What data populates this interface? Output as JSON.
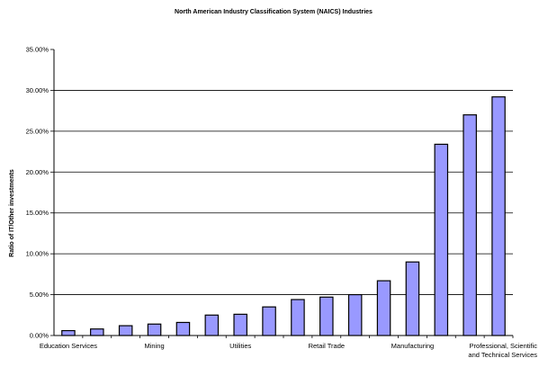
{
  "chart_data": {
    "type": "bar",
    "title": "North American Industry Classification System (NAICS) Industries",
    "xlabel": "",
    "ylabel": "Ratio of IT/Other investments",
    "ylim": [
      0,
      0.35
    ],
    "yticks": [
      "0.00%",
      "5.00%",
      "10.00%",
      "15.00%",
      "20.00%",
      "25.00%",
      "30.00%",
      "35.00%"
    ],
    "grid": true,
    "legend": "none",
    "bar_color": "#9999ff",
    "categories": [
      "Education Services",
      "",
      "",
      "Mining",
      "",
      "",
      "Utilities",
      "",
      "",
      "Retail Trade",
      "",
      "",
      "Manufacturing",
      "",
      "",
      "Professional, Scientific and Technical Services"
    ],
    "visible_category_labels": [
      {
        "index": 0,
        "lines": [
          "Education Services"
        ]
      },
      {
        "index": 3,
        "lines": [
          "Mining"
        ]
      },
      {
        "index": 6,
        "lines": [
          "Utilities"
        ]
      },
      {
        "index": 9,
        "lines": [
          "Retail Trade"
        ]
      },
      {
        "index": 12,
        "lines": [
          "Manufacturing"
        ]
      },
      {
        "index": 15,
        "lines": [
          "Professional, Scientific",
          "and Technical Services"
        ]
      }
    ],
    "values": [
      0.006,
      0.008,
      0.012,
      0.014,
      0.016,
      0.025,
      0.026,
      0.035,
      0.044,
      0.047,
      0.05,
      0.067,
      0.09,
      0.234,
      0.27,
      0.292
    ]
  }
}
